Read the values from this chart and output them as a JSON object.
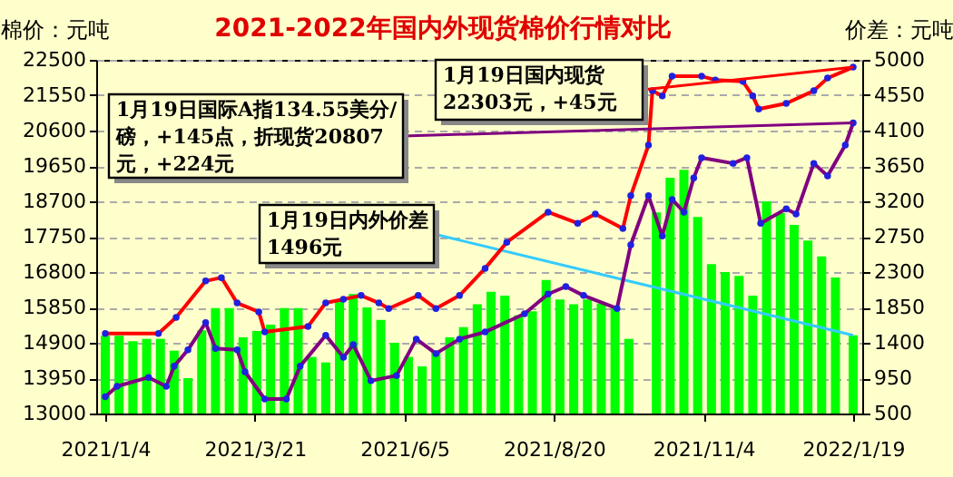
{
  "chart_data": {
    "type": "line",
    "title": "2021-2022年国内外现货棉价行情对比",
    "ylabel": "棉价：元吨",
    "y2label": "价差：元吨",
    "xlim": [
      "2021-01-04",
      "2022-01-19"
    ],
    "xticks": [
      {
        "value": "2021-01-04",
        "label": "2021/1/4"
      },
      {
        "value": "2021-03-21",
        "label": "2021/3/21"
      },
      {
        "value": "2021-06-05",
        "label": "2021/6/5"
      },
      {
        "value": "2021-08-20",
        "label": "2021/8/20"
      },
      {
        "value": "2021-11-04",
        "label": "2021/11/4"
      },
      {
        "value": "2022-01-19",
        "label": "2022/1/19"
      }
    ],
    "ylim": [
      13000,
      22500
    ],
    "yticks": [
      13000,
      13950,
      14900,
      15850,
      16800,
      17750,
      18700,
      19650,
      20600,
      21550,
      22500
    ],
    "y2lim": [
      500,
      5000
    ],
    "y2ticks": [
      500,
      950,
      1400,
      1850,
      2300,
      2750,
      3200,
      3650,
      4100,
      4550,
      5000
    ],
    "grid": "y",
    "marker": "circle",
    "line_style": "solid",
    "series": [
      {
        "type": "bar",
        "axis": "y2",
        "color": "#00ff00",
        "x": [
          "2021-01-04",
          "2021-01-11",
          "2021-01-18",
          "2021-01-25",
          "2021-02-01",
          "2021-02-08",
          "2021-02-15",
          "2021-02-22",
          "2021-03-01",
          "2021-03-08",
          "2021-03-15",
          "2021-03-22",
          "2021-03-29",
          "2021-04-05",
          "2021-04-12",
          "2021-04-19",
          "2021-04-26",
          "2021-05-03",
          "2021-05-10",
          "2021-05-17",
          "2021-05-24",
          "2021-05-31",
          "2021-06-07",
          "2021-06-14",
          "2021-06-21",
          "2021-06-28",
          "2021-07-05",
          "2021-07-12",
          "2021-07-19",
          "2021-07-26",
          "2021-08-02",
          "2021-08-09",
          "2021-08-16",
          "2021-08-23",
          "2021-08-30",
          "2021-09-06",
          "2021-09-13",
          "2021-09-20",
          "2021-09-27",
          "2021-10-04",
          "2021-10-11",
          "2021-10-18",
          "2021-10-25",
          "2021-11-01",
          "2021-11-08",
          "2021-11-15",
          "2021-11-22",
          "2021-11-29",
          "2021-12-06",
          "2021-12-13",
          "2021-12-20",
          "2021-12-27",
          "2022-01-03",
          "2022-01-10",
          "2022-01-19"
        ],
        "values": [
          1490,
          1490,
          1420,
          1450,
          1450,
          1300,
          950,
          1560,
          1840,
          1840,
          1470,
          1550,
          1630,
          1840,
          1840,
          1220,
          1150,
          1950,
          2020,
          1850,
          1690,
          1400,
          1220,
          1100,
          1300,
          1470,
          1600,
          1890,
          2050,
          2000,
          1750,
          1800,
          2200,
          1950,
          1890,
          1950,
          1900,
          1840,
          1450,
          null,
          3060,
          3500,
          3600,
          3000,
          2400,
          2300,
          2250,
          2000,
          3200,
          3050,
          2900,
          2700,
          2500,
          2230,
          1496
        ]
      },
      {
        "color": "#ff0000",
        "x": [
          "2021-01-04",
          "2021-01-31",
          "2021-02-09",
          "2021-02-24",
          "2021-03-04",
          "2021-03-12",
          "2021-03-23",
          "2021-03-26",
          "2021-04-17",
          "2021-04-26",
          "2021-05-05",
          "2021-05-14",
          "2021-05-23",
          "2021-05-28",
          "2021-06-12",
          "2021-06-21",
          "2021-07-03",
          "2021-07-16",
          "2021-07-27",
          "2021-08-17",
          "2021-09-01",
          "2021-09-10",
          "2021-09-24",
          "2021-09-28",
          "2021-10-07",
          "2021-10-09",
          "2021-10-14",
          "2021-10-19",
          "2021-11-03",
          "2021-11-10",
          "2021-11-24",
          "2021-11-29",
          "2021-12-02",
          "2021-12-16",
          "2021-12-30",
          "2022-01-06",
          "2022-01-19"
        ],
        "values": [
          15150,
          15150,
          15580,
          16560,
          16650,
          15970,
          15730,
          15190,
          15340,
          15970,
          16070,
          16170,
          15970,
          15820,
          16170,
          15820,
          16170,
          16900,
          17600,
          18410,
          18110,
          18360,
          17970,
          18850,
          20210,
          21670,
          21530,
          22060,
          22060,
          21960,
          21920,
          21530,
          21180,
          21330,
          21670,
          22010,
          22303
        ]
      },
      {
        "color": "#800080",
        "x": [
          "2021-01-04",
          "2021-01-10",
          "2021-01-26",
          "2021-02-04",
          "2021-02-08",
          "2021-02-15",
          "2021-02-24",
          "2021-03-01",
          "2021-03-12",
          "2021-03-16",
          "2021-03-26",
          "2021-04-06",
          "2021-04-13",
          "2021-04-26",
          "2021-05-05",
          "2021-05-10",
          "2021-05-19",
          "2021-06-01",
          "2021-06-11",
          "2021-06-21",
          "2021-07-03",
          "2021-07-16",
          "2021-08-05",
          "2021-08-17",
          "2021-08-26",
          "2021-09-04",
          "2021-09-21",
          "2021-09-28",
          "2021-10-07",
          "2021-10-14",
          "2021-10-19",
          "2021-10-25",
          "2021-10-30",
          "2021-11-03",
          "2021-11-19",
          "2021-11-26",
          "2021-12-03",
          "2021-12-16",
          "2021-12-21",
          "2021-12-30",
          "2022-01-06",
          "2022-01-15",
          "2022-01-19"
        ],
        "values": [
          13450,
          13730,
          13970,
          13730,
          14270,
          14710,
          15440,
          14750,
          14710,
          14120,
          13390,
          13390,
          14270,
          15100,
          14510,
          14850,
          13880,
          14020,
          15000,
          14610,
          15000,
          15190,
          15680,
          16210,
          16410,
          16170,
          15820,
          17530,
          18850,
          17770,
          18750,
          18410,
          19330,
          19870,
          19720,
          19870,
          18110,
          18500,
          18360,
          19720,
          19380,
          20210,
          20807
        ]
      }
    ],
    "annotations": [
      {
        "text": "1月19日国际A指134.55美分/磅，+145点，折现货20807元，+224元",
        "x": "2022-01-19",
        "y": 20807
      },
      {
        "text": "1月19日国内现货22303元，+45元",
        "x": "2022-01-19",
        "y": 22303
      },
      "1月19日内外价差1496元"
    ]
  }
}
